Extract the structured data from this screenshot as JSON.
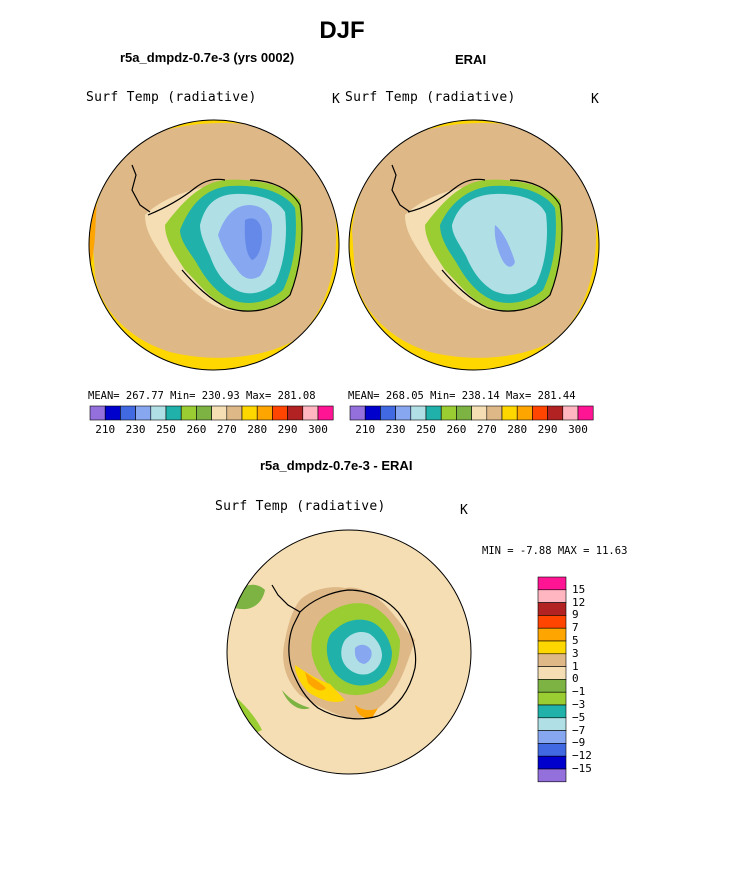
{
  "title": "DJF",
  "panels": [
    {
      "subtitle": "r5a_dmpdz-0.7e-3 (yrs 0002)",
      "variable": "Surf Temp (radiative)",
      "unit": "K",
      "stats": "MEAN= 267.77   Min= 230.93   Max= 281.08"
    },
    {
      "subtitle": "ERAI",
      "variable": "Surf Temp (radiative)",
      "unit": "K",
      "stats": "MEAN= 268.05   Min= 238.14   Max= 281.44"
    },
    {
      "subtitle": "r5a_dmpdz-0.7e-3 - ERAI",
      "variable": "Surf Temp (radiative)",
      "unit": "K",
      "stats": "MIN =   -7.88  MAX =   11.63"
    }
  ],
  "colorbar_main": {
    "colors": [
      "#9370db",
      "#0000cd",
      "#4169e1",
      "#87a8f0",
      "#b0e0e6",
      "#20b2aa",
      "#9acd32",
      "#7cb342",
      "#f5deb3",
      "#deb887",
      "#ffd700",
      "#ffa500",
      "#ff4500",
      "#b22222",
      "#ffb6c1",
      "#ff1493"
    ],
    "labels": [
      "210",
      "230",
      "250",
      "260",
      "270",
      "280",
      "290",
      "300"
    ]
  },
  "colorbar_diff": {
    "colors": [
      "#ff1493",
      "#ffb6c1",
      "#b22222",
      "#ff4500",
      "#ffa500",
      "#ffd700",
      "#deb887",
      "#f5deb3",
      "#7cb342",
      "#9acd32",
      "#20b2aa",
      "#b0e0e6",
      "#87a8f0",
      "#4169e1",
      "#0000cd",
      "#9370db"
    ],
    "labels": [
      "15",
      "12",
      "9",
      "7",
      "5",
      "3",
      "1",
      "0",
      "−1",
      "−3",
      "−5",
      "−7",
      "−9",
      "−12",
      "−15"
    ]
  },
  "chart_data": [
    {
      "type": "heatmap",
      "title": "r5a_dmpdz-0.7e-3 (yrs 0002)",
      "variable": "Surf Temp (radiative)",
      "units": "K",
      "projection": "south polar stereographic",
      "mean": 267.77,
      "min": 230.93,
      "max": 281.08,
      "levels": [
        210,
        220,
        230,
        240,
        250,
        255,
        260,
        265,
        270,
        275,
        280,
        285,
        290,
        295,
        300
      ]
    },
    {
      "type": "heatmap",
      "title": "ERAI",
      "variable": "Surf Temp (radiative)",
      "units": "K",
      "projection": "south polar stereographic",
      "mean": 268.05,
      "min": 238.14,
      "max": 281.44,
      "levels": [
        210,
        220,
        230,
        240,
        250,
        255,
        260,
        265,
        270,
        275,
        280,
        285,
        290,
        295,
        300
      ]
    },
    {
      "type": "heatmap",
      "title": "r5a_dmpdz-0.7e-3 - ERAI",
      "variable": "Surf Temp (radiative)",
      "units": "K",
      "projection": "south polar stereographic",
      "min": -7.88,
      "max": 11.63,
      "levels": [
        -15,
        -12,
        -9,
        -7,
        -5,
        -3,
        -1,
        0,
        1,
        3,
        5,
        7,
        9,
        12,
        15
      ]
    }
  ]
}
